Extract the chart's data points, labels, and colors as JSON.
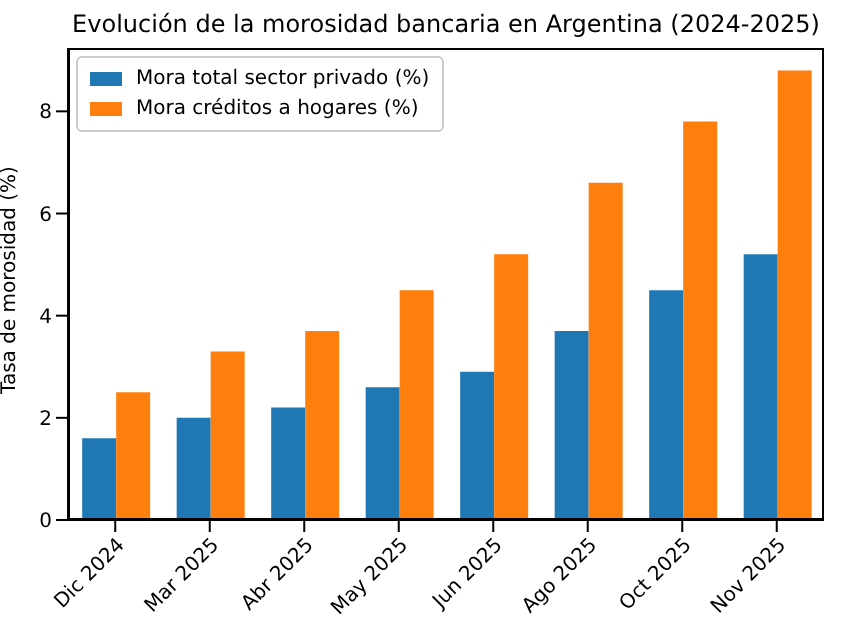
{
  "chart_data": {
    "type": "bar",
    "title": "Evolución de la morosidad bancaria en Argentina (2024-2025)",
    "ylabel": "Tasa de morosidad (%)",
    "categories": [
      "Dic 2024",
      "Mar 2025",
      "Abr 2025",
      "May 2025",
      "Jun 2025",
      "Ago 2025",
      "Oct 2025",
      "Nov 2025"
    ],
    "series": [
      {
        "name": "Mora total sector privado (%)",
        "color": "#1f77b4",
        "values": [
          1.6,
          2.0,
          2.2,
          2.6,
          2.9,
          3.7,
          4.5,
          5.2
        ]
      },
      {
        "name": "Mora créditos a hogares (%)",
        "color": "#ff7f0e",
        "values": [
          2.5,
          3.3,
          3.7,
          4.5,
          5.2,
          6.6,
          7.8,
          8.8
        ]
      }
    ],
    "ylim": [
      0,
      9.24
    ],
    "yticks": [
      0,
      2,
      4,
      6,
      8
    ],
    "legend": "top left"
  }
}
